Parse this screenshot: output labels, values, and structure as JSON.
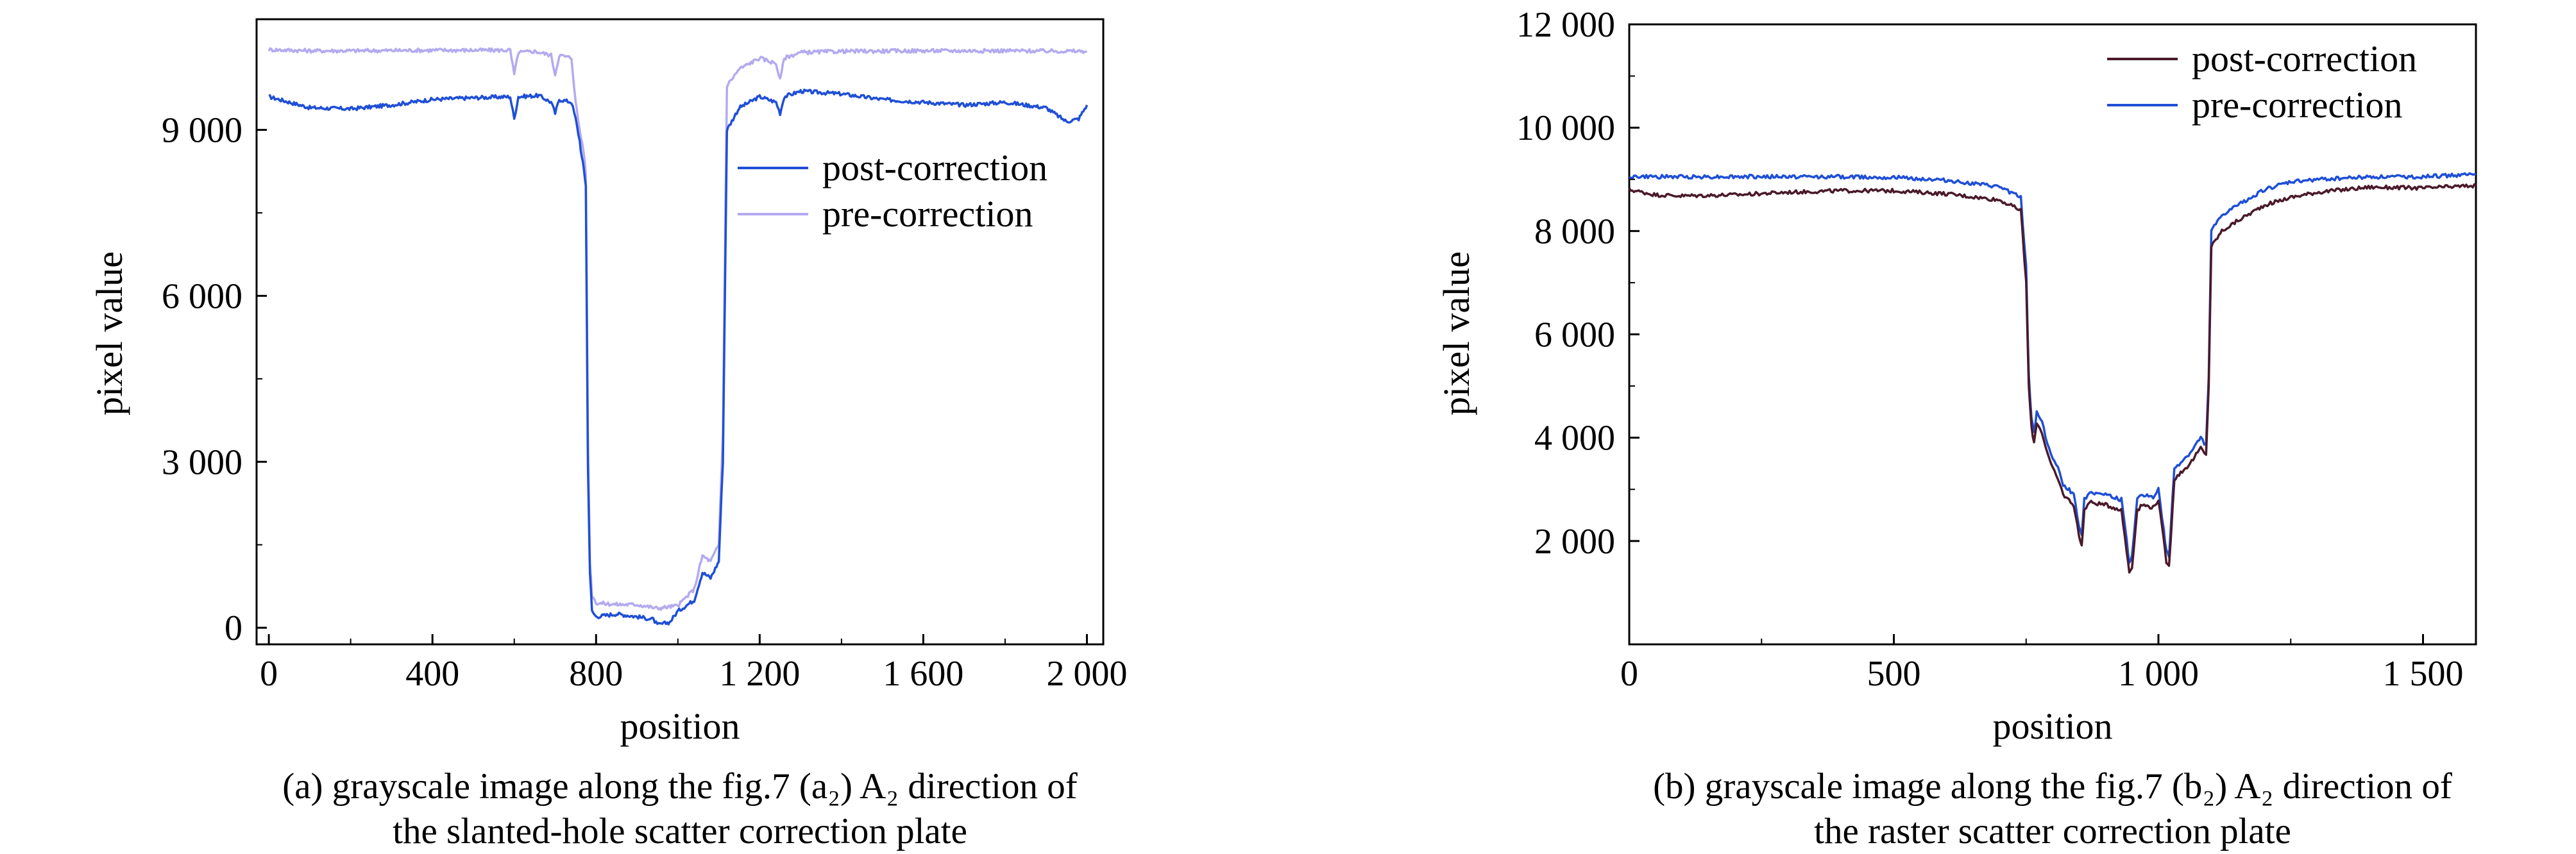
{
  "chart_data": [
    {
      "type": "line",
      "id": "a",
      "title": "",
      "xlabel": "position",
      "ylabel": "pixel value",
      "xlim": [
        -30,
        2040
      ],
      "ylim": [
        -300,
        11000
      ],
      "xticks": [
        0,
        400,
        800,
        1200,
        1600,
        2000
      ],
      "xtick_labels": [
        "0",
        "400",
        "800",
        "1 200",
        "1 600",
        "2 000"
      ],
      "yticks": [
        0,
        3000,
        6000,
        9000
      ],
      "ytick_labels": [
        "0",
        "3 000",
        "6 000",
        "9 000"
      ],
      "legend_position": "right",
      "caption": [
        "(a) grayscale image along the fig.7 (a₂) A₂ direction of",
        "the slanted-hole scatter correction plate"
      ],
      "series": [
        {
          "name": "post-correction",
          "color": "#1f4fd6",
          "x": [
            0,
            50,
            100,
            200,
            300,
            400,
            500,
            590,
            600,
            610,
            660,
            690,
            700,
            710,
            740,
            750,
            760,
            765,
            770,
            775,
            780,
            785,
            790,
            800,
            850,
            900,
            940,
            950,
            980,
            1000,
            1040,
            1060,
            1080,
            1100,
            1110,
            1120,
            1150,
            1200,
            1240,
            1250,
            1260,
            1300,
            1400,
            1500,
            1600,
            1700,
            1800,
            1900,
            1950,
            1980,
            2000
          ],
          "y": [
            9600,
            9500,
            9400,
            9380,
            9450,
            9550,
            9580,
            9600,
            9200,
            9600,
            9620,
            9500,
            9300,
            9550,
            9500,
            9200,
            8800,
            8500,
            8300,
            8000,
            3000,
            1000,
            300,
            200,
            250,
            200,
            150,
            50,
            100,
            300,
            500,
            1000,
            900,
            1200,
            3000,
            9000,
            9400,
            9600,
            9500,
            9300,
            9600,
            9700,
            9650,
            9550,
            9500,
            9450,
            9500,
            9400,
            9150,
            9200,
            9450
          ]
        },
        {
          "name": "pre-correction",
          "color": "#b3aaf0",
          "x": [
            0,
            100,
            200,
            400,
            590,
            600,
            610,
            650,
            690,
            700,
            710,
            740,
            750,
            760,
            770,
            775,
            780,
            785,
            790,
            800,
            850,
            900,
            950,
            1000,
            1040,
            1060,
            1080,
            1100,
            1110,
            1120,
            1150,
            1200,
            1240,
            1250,
            1260,
            1300,
            1400,
            1600,
            1800,
            2000
          ],
          "y": [
            10450,
            10430,
            10430,
            10440,
            10440,
            10000,
            10400,
            10420,
            10350,
            10000,
            10350,
            10300,
            9500,
            9000,
            8600,
            8200,
            3500,
            1200,
            600,
            450,
            420,
            420,
            350,
            400,
            700,
            1300,
            1200,
            1500,
            3500,
            9800,
            10100,
            10300,
            10200,
            9900,
            10300,
            10400,
            10420,
            10430,
            10430,
            10420
          ]
        }
      ]
    },
    {
      "type": "line",
      "id": "b",
      "title": "",
      "xlabel": "position",
      "ylabel": "pixel value",
      "xlim": [
        0,
        1600
      ],
      "ylim": [
        0,
        12000
      ],
      "xticks": [
        0,
        500,
        1000,
        1500
      ],
      "xtick_labels": [
        "0",
        "500",
        "1 000",
        "1 500"
      ],
      "yticks": [
        2000,
        4000,
        6000,
        8000,
        10000,
        12000
      ],
      "ytick_labels": [
        "2 000",
        "4 000",
        "6 000",
        "8 000",
        "10 000",
        "12 000"
      ],
      "legend_position": "top-right",
      "caption": [
        "(b) grayscale image along the fig.7 (b₂) A₂ direction of",
        "the raster scatter correction plate"
      ],
      "series": [
        {
          "name": "post-correction",
          "color": "#4a1a2a",
          "x": [
            0,
            50,
            100,
            200,
            300,
            400,
            500,
            600,
            700,
            740,
            750,
            755,
            760,
            765,
            770,
            780,
            790,
            800,
            810,
            820,
            840,
            850,
            855,
            860,
            870,
            900,
            930,
            940,
            945,
            950,
            960,
            970,
            990,
            1000,
            1010,
            1015,
            1020,
            1030,
            1060,
            1080,
            1090,
            1095,
            1100,
            1120,
            1150,
            1200,
            1250,
            1300,
            1400,
            1500,
            1600
          ],
          "y": [
            8800,
            8700,
            8680,
            8700,
            8750,
            8780,
            8780,
            8720,
            8600,
            8400,
            7000,
            5000,
            4200,
            3900,
            4300,
            4100,
            3700,
            3400,
            3200,
            2900,
            2700,
            2100,
            1900,
            2600,
            2750,
            2700,
            2600,
            1800,
            1400,
            1500,
            2600,
            2700,
            2650,
            2800,
            2000,
            1600,
            1500,
            3200,
            3500,
            3800,
            3650,
            5000,
            7700,
            8000,
            8200,
            8500,
            8650,
            8750,
            8850,
            8830,
            8880
          ]
        },
        {
          "name": "pre-correction",
          "color": "#1f4fd6",
          "x": [
            0,
            50,
            100,
            200,
            300,
            400,
            500,
            600,
            700,
            740,
            750,
            755,
            760,
            765,
            770,
            780,
            790,
            800,
            810,
            820,
            840,
            850,
            855,
            860,
            870,
            900,
            930,
            940,
            945,
            950,
            960,
            970,
            990,
            1000,
            1010,
            1015,
            1020,
            1030,
            1060,
            1080,
            1090,
            1095,
            1100,
            1120,
            1150,
            1200,
            1250,
            1300,
            1400,
            1500,
            1600
          ],
          "y": [
            9050,
            9050,
            9050,
            9050,
            9050,
            9050,
            9040,
            8980,
            8850,
            8650,
            7300,
            5200,
            4400,
            4100,
            4500,
            4300,
            3900,
            3600,
            3400,
            3100,
            2900,
            2300,
            2100,
            2800,
            2950,
            2900,
            2800,
            2000,
            1600,
            1700,
            2800,
            2900,
            2850,
            3000,
            2200,
            1800,
            1700,
            3400,
            3700,
            4000,
            3850,
            5200,
            8000,
            8300,
            8500,
            8800,
            8950,
            9000,
            9050,
            9050,
            9100
          ]
        }
      ]
    }
  ]
}
